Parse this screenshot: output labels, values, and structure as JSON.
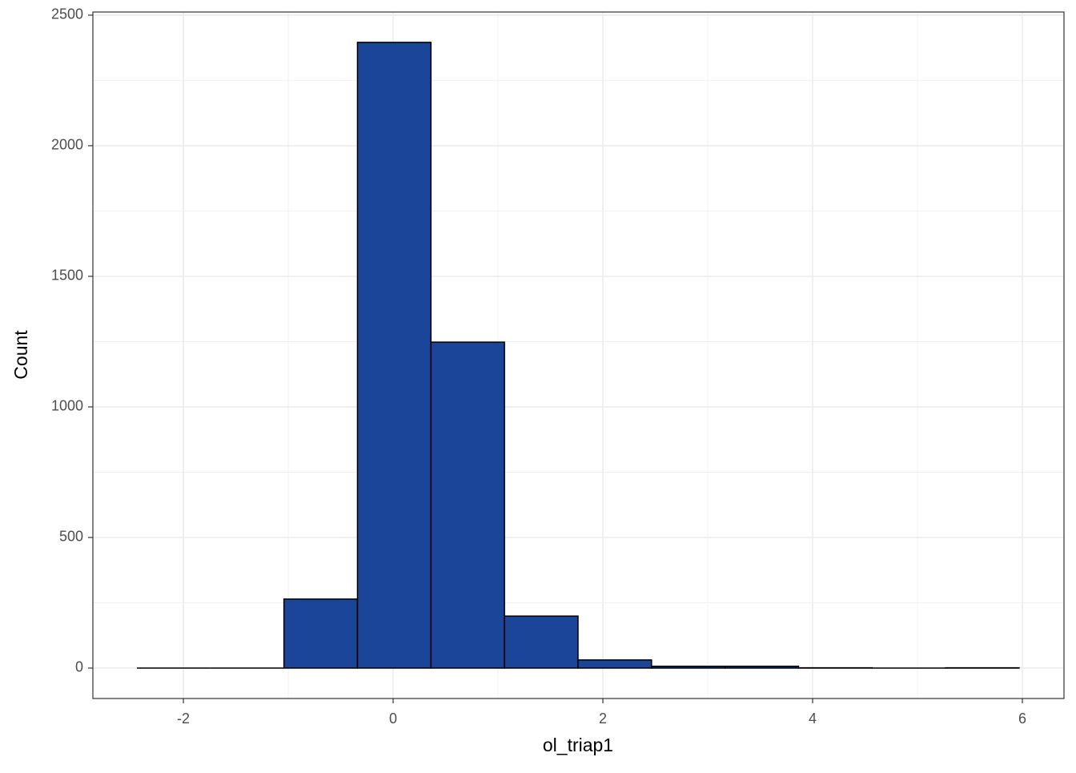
{
  "chart_data": {
    "type": "histogram",
    "x_label": "ol_triap1",
    "y_label": "Count",
    "bins": [
      -2.443,
      -1.742,
      -1.041,
      -0.34,
      0.361,
      1.062,
      1.763,
      2.464,
      3.165,
      3.866,
      4.567,
      5.268,
      5.969
    ],
    "counts": [
      0,
      0,
      264,
      2396,
      1248,
      199,
      31,
      7,
      7,
      1,
      0,
      1
    ],
    "color": "#1a4599",
    "edge_color": "#000000",
    "xlim": [
      -2.863,
      6.397
    ],
    "xticks": [
      -2,
      0,
      2,
      4,
      6
    ],
    "x_minor_grid": [
      -1,
      1,
      3,
      5
    ],
    "ylim": [
      -116.6,
      2512
    ],
    "yticks": [
      0,
      500,
      1000,
      1500,
      2000,
      2500
    ],
    "y_minor_grid": [
      250,
      750,
      1250,
      1750,
      2250
    ],
    "grid": true
  }
}
